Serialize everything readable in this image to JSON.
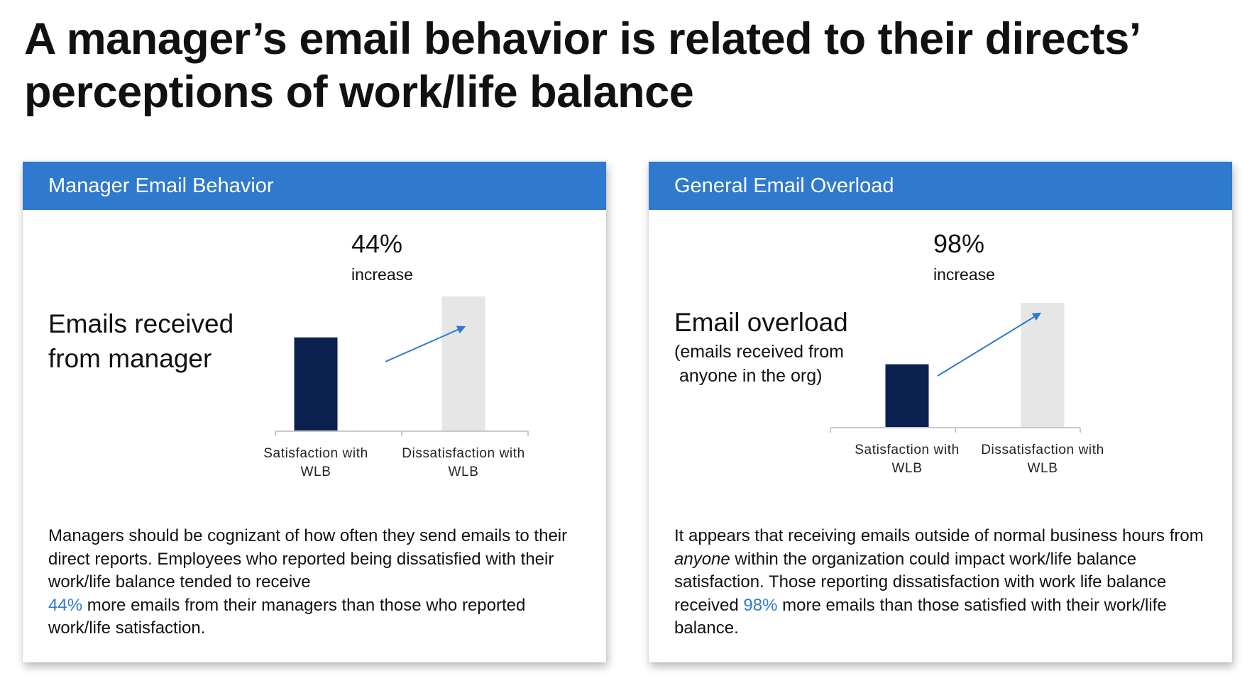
{
  "title": "A manager’s email behavior is related to their directs’ perceptions of work/life balance",
  "colors": {
    "header": "#2f79cf",
    "bar_satisfied": "#0b2150",
    "bar_dissatisfied": "#e6e6e6",
    "arrow": "#2f79cf",
    "highlight": "#2f79cf"
  },
  "left_card": {
    "header": "Manager Email Behavior",
    "metric_line1": "Emails received",
    "metric_line2": "from manager",
    "desc_part1": "Managers should be cognizant of how often they send emails to their direct reports. Employees who reported being dissatisfied with their work/life balance tended to receive",
    "desc_highlight": "44%",
    "desc_part2": " more emails from their managers than those who reported work/life satisfaction."
  },
  "right_card": {
    "header": "General Email Overload",
    "metric_main": "Email overload",
    "metric_sub1": "(emails received from",
    "metric_sub2": " anyone in the org)",
    "desc_part1": "It appears that receiving emails outside of normal business hours from ",
    "desc_emph": "anyone",
    "desc_part2": " within the organization could impact work/life balance satisfaction. Those reporting dissatisfaction with work life balance received ",
    "desc_highlight": "98%",
    "desc_part3": " more emails than those satisfied with their work/life balance."
  },
  "chart_data": [
    {
      "type": "bar",
      "categories": [
        [
          "Satisfaction with",
          "WLB"
        ],
        [
          "Dissatisfaction with",
          "WLB"
        ]
      ],
      "values": [
        1.0,
        1.44
      ],
      "annotation_value": "44%",
      "annotation_label": "increase",
      "ylim": [
        0,
        1.44
      ]
    },
    {
      "type": "bar",
      "categories": [
        [
          "Satisfaction with",
          "WLB"
        ],
        [
          "Dissatisfaction with",
          "WLB"
        ]
      ],
      "values": [
        1.0,
        1.98
      ],
      "annotation_value": "98%",
      "annotation_label": "increase",
      "ylim": [
        0,
        1.98
      ]
    }
  ]
}
